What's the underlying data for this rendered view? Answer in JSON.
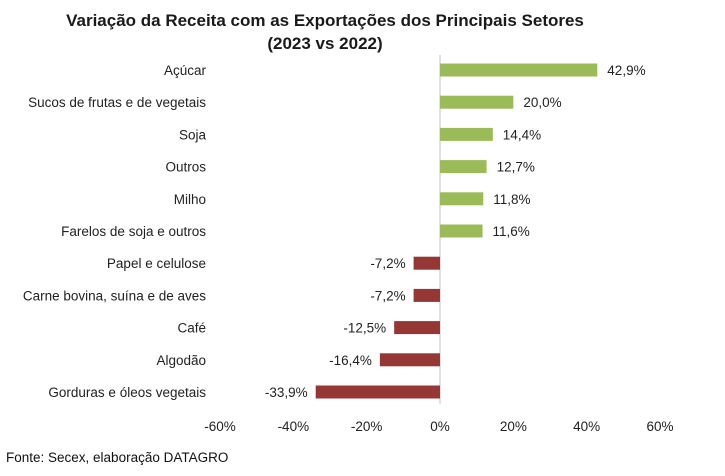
{
  "chart_data": {
    "type": "bar",
    "orientation": "horizontal",
    "title_line1": "Variação da Receita com as Exportações dos Principais Setores",
    "title_line2": "(2023 vs 2022)",
    "categories": [
      "Açúcar",
      "Sucos de frutas e de vegetais",
      "Soja",
      "Outros",
      "Milho",
      "Farelos de soja e outros",
      "Papel e celulose",
      "Carne bovina, suína e de aves",
      "Café",
      "Algodão",
      "Gorduras e óleos vegetais"
    ],
    "values": [
      42.9,
      20.0,
      14.4,
      12.7,
      11.8,
      11.6,
      -7.2,
      -7.2,
      -12.5,
      -16.4,
      -33.9
    ],
    "value_labels": [
      "42,9%",
      "20,0%",
      "14,4%",
      "12,7%",
      "11,8%",
      "11,6%",
      "-7,2%",
      "-7,2%",
      "-12,5%",
      "-16,4%",
      "-33,9%"
    ],
    "xlim": [
      -60,
      60
    ],
    "xticks": [
      -60,
      -40,
      -20,
      0,
      20,
      40,
      60
    ],
    "xtick_labels": [
      "-60%",
      "-40%",
      "-20%",
      "0%",
      "20%",
      "40%",
      "60%"
    ],
    "grid": false,
    "legend": "none",
    "colors": {
      "positive": "#9bbb59",
      "negative": "#953735",
      "axis": "#bfbfbf"
    }
  },
  "source": "Fonte: Secex, elaboração DATAGRO"
}
